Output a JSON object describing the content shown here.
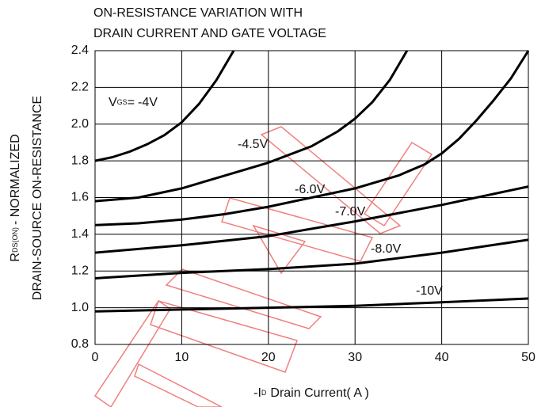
{
  "chart_data": {
    "type": "line",
    "title_lines": [
      "ON-RESISTANCE VARIATION WITH",
      "DRAIN CURRENT AND GATE VOLTAGE"
    ],
    "ylabel": {
      "symbol": "R",
      "subscript": "DS(ON)",
      "rest": "- NORMALIZED",
      "line2": "DRAIN-SOURCE ON-RESISTANCE"
    },
    "xlabel": {
      "symbol": "-I",
      "subscript": "D",
      "rest": "Drain Current( A )"
    },
    "label_prefix": {
      "symbol": "V",
      "subscript": "GS",
      "sep": "="
    },
    "xlim": [
      0,
      50
    ],
    "xticks": [
      0,
      10,
      20,
      30,
      40,
      50
    ],
    "ylim": [
      0.8,
      2.4
    ],
    "yticks": [
      0.8,
      {
        "value": 1,
        "label": "1.0"
      },
      1.2,
      1.4,
      1.6,
      1.8,
      {
        "value": 2,
        "label": "2.0"
      },
      2.2,
      2.4
    ],
    "grid": true,
    "series": [
      {
        "name": "-4V",
        "color": "#000000",
        "x": [
          0,
          2,
          4,
          6,
          8,
          10,
          12,
          14,
          16
        ],
        "values": [
          1.8,
          1.82,
          1.85,
          1.89,
          1.94,
          2.01,
          2.11,
          2.24,
          2.4
        ]
      },
      {
        "name": "-4.5V",
        "color": "#000000",
        "x": [
          0,
          5,
          10,
          15,
          20,
          25,
          28,
          30,
          32,
          34,
          36
        ],
        "values": [
          1.58,
          1.6,
          1.65,
          1.72,
          1.79,
          1.88,
          1.96,
          2.03,
          2.12,
          2.24,
          2.4
        ]
      },
      {
        "name": "-6.0V",
        "color": "#000000",
        "x": [
          0,
          5,
          10,
          15,
          20,
          25,
          30,
          35,
          38,
          40,
          42,
          44,
          46,
          48,
          50
        ],
        "values": [
          1.45,
          1.46,
          1.48,
          1.51,
          1.55,
          1.6,
          1.65,
          1.72,
          1.78,
          1.84,
          1.92,
          2.02,
          2.13,
          2.25,
          2.4
        ]
      },
      {
        "name": "-7.0V",
        "color": "#000000",
        "x": [
          0,
          10,
          20,
          30,
          40,
          45,
          50
        ],
        "values": [
          1.3,
          1.34,
          1.39,
          1.47,
          1.56,
          1.61,
          1.66
        ]
      },
      {
        "name": "-8.0V",
        "color": "#000000",
        "x": [
          0,
          10,
          20,
          30,
          40,
          50
        ],
        "values": [
          1.16,
          1.19,
          1.21,
          1.24,
          1.3,
          1.37
        ]
      },
      {
        "name": "-10V",
        "color": "#000000",
        "x": [
          0,
          10,
          20,
          30,
          40,
          50
        ],
        "values": [
          0.98,
          0.99,
          1.0,
          1.01,
          1.03,
          1.05
        ]
      }
    ]
  }
}
